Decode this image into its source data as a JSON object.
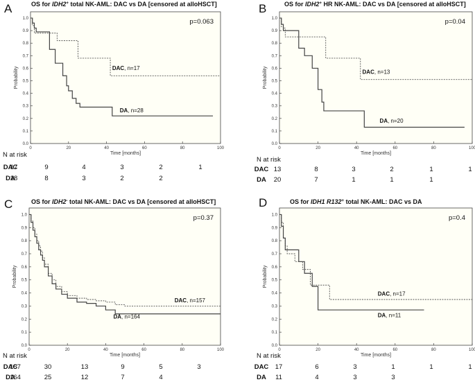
{
  "n_at_risk_label": "N at risk",
  "chart_data": [
    {
      "panel": "A",
      "type": "line",
      "title_parts": [
        [
          "OS for ",
          "n"
        ],
        [
          "IDH2",
          "i"
        ],
        [
          "+",
          "s"
        ],
        [
          " total NK-AML: DAC vs DA [censored at alloHSCT]",
          "n"
        ]
      ],
      "p_value": "p=0.063",
      "xlabel": "Time [months]",
      "ylabel": "Probability",
      "xlim": [
        0,
        100
      ],
      "ylim": [
        0,
        1.05
      ],
      "xticks": [
        0,
        20,
        40,
        60,
        80,
        100
      ],
      "yticks": [
        0.0,
        0.1,
        0.2,
        0.3,
        0.4,
        0.5,
        0.6,
        0.7,
        0.8,
        0.9,
        1.0
      ],
      "series": [
        {
          "name": "DAC",
          "label_suffix": ", n=17",
          "dash": true,
          "x": [
            0,
            1,
            2,
            4,
            14,
            25,
            42,
            100
          ],
          "y": [
            1.0,
            0.94,
            0.88,
            0.88,
            0.82,
            0.68,
            0.54,
            0.54
          ],
          "label_at": [
            43,
            0.585
          ]
        },
        {
          "name": "DA",
          "label_suffix": ", n=28",
          "dash": false,
          "x": [
            0,
            1,
            2,
            3,
            10,
            13,
            17,
            19,
            20,
            22,
            24,
            26,
            43,
            96
          ],
          "y": [
            1.0,
            0.96,
            0.92,
            0.89,
            0.75,
            0.64,
            0.54,
            0.46,
            0.42,
            0.36,
            0.32,
            0.29,
            0.22,
            0.22
          ],
          "label_at": [
            47,
            0.25
          ]
        }
      ],
      "risk_table": {
        "times": [
          0,
          20,
          40,
          60,
          80,
          100
        ],
        "rows": [
          {
            "name": "DAC",
            "counts": [
              "17",
              "9",
              "4",
              "3",
              "2",
              "1"
            ]
          },
          {
            "name": "DA",
            "counts": [
              "28",
              "8",
              "3",
              "2",
              "2",
              ""
            ]
          }
        ]
      }
    },
    {
      "panel": "B",
      "type": "line",
      "title_parts": [
        [
          "OS for ",
          "n"
        ],
        [
          "IDH2",
          "i"
        ],
        [
          "+",
          "s"
        ],
        [
          " HR NK-AML: DAC vs DA [censored at alloHSCT]",
          "n"
        ]
      ],
      "p_value": "p=0.04",
      "xlabel": "Time [months]",
      "ylabel": "Probability",
      "xlim": [
        0,
        100
      ],
      "ylim": [
        0,
        1.05
      ],
      "xticks": [
        0,
        20,
        40,
        60,
        80,
        100
      ],
      "yticks": [
        0.0,
        0.1,
        0.2,
        0.3,
        0.4,
        0.5,
        0.6,
        0.7,
        0.8,
        0.9,
        1.0
      ],
      "series": [
        {
          "name": "DAC",
          "label_suffix": ", n=13",
          "dash": true,
          "x": [
            0,
            1,
            2,
            3,
            5,
            24,
            42,
            100
          ],
          "y": [
            1.0,
            0.93,
            0.92,
            0.85,
            0.85,
            0.68,
            0.51,
            0.51
          ],
          "label_at": [
            43,
            0.555
          ]
        },
        {
          "name": "DA",
          "label_suffix": ", n=20",
          "dash": false,
          "x": [
            0,
            1,
            2,
            3,
            10,
            13,
            17,
            20,
            22,
            23,
            44,
            96
          ],
          "y": [
            1.0,
            0.95,
            0.9,
            0.9,
            0.76,
            0.7,
            0.6,
            0.43,
            0.33,
            0.26,
            0.13,
            0.13
          ],
          "label_at": [
            52,
            0.165
          ]
        }
      ],
      "risk_table": {
        "times": [
          0,
          20,
          40,
          60,
          80,
          100
        ],
        "rows": [
          {
            "name": "DAC",
            "counts": [
              "13",
              "8",
              "3",
              "2",
              "1",
              "1"
            ]
          },
          {
            "name": "DA",
            "counts": [
              "20",
              "7",
              "1",
              "1",
              "1",
              ""
            ]
          }
        ]
      }
    },
    {
      "panel": "C",
      "type": "line",
      "title_parts": [
        [
          "OS for ",
          "n"
        ],
        [
          "IDH2",
          "i"
        ],
        [
          "-",
          "s"
        ],
        [
          " total NK-AML: DAC vs DA [censored at alloHSCT]",
          "n"
        ]
      ],
      "p_value": "p=0.37",
      "xlabel": "Time [months]",
      "ylabel": "Probability",
      "xlim": [
        0,
        100
      ],
      "ylim": [
        0,
        1.05
      ],
      "xticks": [
        0,
        20,
        40,
        60,
        80,
        100
      ],
      "yticks": [
        0.0,
        0.1,
        0.2,
        0.3,
        0.4,
        0.5,
        0.6,
        0.7,
        0.8,
        0.9,
        1.0
      ],
      "series": [
        {
          "name": "DAC",
          "label_suffix": ", n=157",
          "dash": true,
          "x": [
            0,
            1,
            2,
            3,
            4,
            5,
            6,
            7,
            8,
            10,
            12,
            14,
            17,
            20,
            25,
            30,
            35,
            40,
            45,
            50,
            100
          ],
          "y": [
            1.0,
            0.95,
            0.9,
            0.85,
            0.8,
            0.76,
            0.72,
            0.67,
            0.62,
            0.55,
            0.5,
            0.45,
            0.41,
            0.38,
            0.36,
            0.35,
            0.34,
            0.33,
            0.31,
            0.3,
            0.3
          ],
          "label_at": [
            76,
            0.33
          ]
        },
        {
          "name": "DA",
          "label_suffix": ", n=164",
          "dash": false,
          "x": [
            0,
            1,
            2,
            3,
            4,
            5,
            6,
            7,
            8,
            10,
            12,
            14,
            17,
            20,
            25,
            30,
            35,
            40,
            45,
            100
          ],
          "y": [
            1.0,
            0.94,
            0.88,
            0.83,
            0.78,
            0.73,
            0.69,
            0.65,
            0.6,
            0.53,
            0.47,
            0.43,
            0.39,
            0.36,
            0.33,
            0.32,
            0.3,
            0.27,
            0.24,
            0.24
          ],
          "label_at": [
            44,
            0.205
          ]
        }
      ],
      "risk_table": {
        "times": [
          0,
          20,
          40,
          60,
          80,
          100
        ],
        "rows": [
          {
            "name": "DAC",
            "counts": [
              "157",
              "30",
              "13",
              "9",
              "5",
              "3"
            ]
          },
          {
            "name": "DA",
            "counts": [
              "164",
              "25",
              "12",
              "7",
              "4",
              ""
            ]
          }
        ]
      }
    },
    {
      "panel": "D",
      "type": "line",
      "title_parts": [
        [
          "OS for ",
          "n"
        ],
        [
          "IDH1 R132",
          "i"
        ],
        [
          "+",
          "s"
        ],
        [
          " total NK-AML: DAC vs DA",
          "n"
        ]
      ],
      "p_value": "p=0.4",
      "xlabel": "Time [months]",
      "ylabel": "Probability",
      "xlim": [
        0,
        100
      ],
      "ylim": [
        0,
        1.05
      ],
      "xticks": [
        0,
        20,
        40,
        60,
        80,
        100
      ],
      "yticks": [
        0.0,
        0.1,
        0.2,
        0.3,
        0.4,
        0.5,
        0.6,
        0.7,
        0.8,
        0.9,
        1.0
      ],
      "series": [
        {
          "name": "DAC",
          "label_suffix": ", n=17",
          "dash": true,
          "x": [
            0,
            1,
            2,
            3,
            4,
            8,
            12,
            16,
            26,
            100
          ],
          "y": [
            1.0,
            0.94,
            0.82,
            0.76,
            0.7,
            0.64,
            0.58,
            0.46,
            0.35,
            0.35
          ],
          "label_at": [
            51,
            0.38
          ]
        },
        {
          "name": "DA",
          "label_suffix": ", n=11",
          "dash": false,
          "x": [
            0,
            1,
            2,
            3,
            5,
            10,
            13,
            17,
            20,
            75
          ],
          "y": [
            1.0,
            0.91,
            0.82,
            0.73,
            0.73,
            0.64,
            0.55,
            0.45,
            0.27,
            0.27
          ],
          "label_at": [
            51,
            0.215
          ]
        }
      ],
      "risk_table": {
        "times": [
          0,
          20,
          40,
          60,
          80,
          100
        ],
        "rows": [
          {
            "name": "DAC",
            "counts": [
              "17",
              "6",
              "3",
              "1",
              "1",
              "1"
            ]
          },
          {
            "name": "DA",
            "counts": [
              "11",
              "4",
              "3",
              "3",
              "",
              ""
            ]
          }
        ]
      }
    }
  ]
}
